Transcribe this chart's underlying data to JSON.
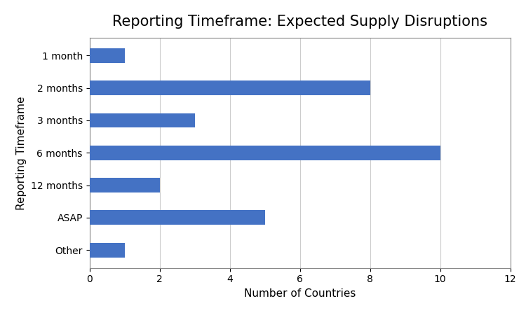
{
  "title": "Reporting Timeframe: Expected Supply Disruptions",
  "categories": [
    "1 month",
    "2 months",
    "3 months",
    "6 months",
    "12 months",
    "ASAP",
    "Other"
  ],
  "values": [
    1,
    8,
    3,
    10,
    2,
    5,
    1
  ],
  "bar_color": "#4472C4",
  "xlabel": "Number of Countries",
  "ylabel": "Reporting Timeframe",
  "xlim": [
    0,
    12
  ],
  "xticks": [
    0,
    2,
    4,
    6,
    8,
    10,
    12
  ],
  "title_fontsize": 15,
  "axis_label_fontsize": 11,
  "tick_fontsize": 10,
  "background_color": "#ffffff",
  "grid_color": "#cccccc"
}
